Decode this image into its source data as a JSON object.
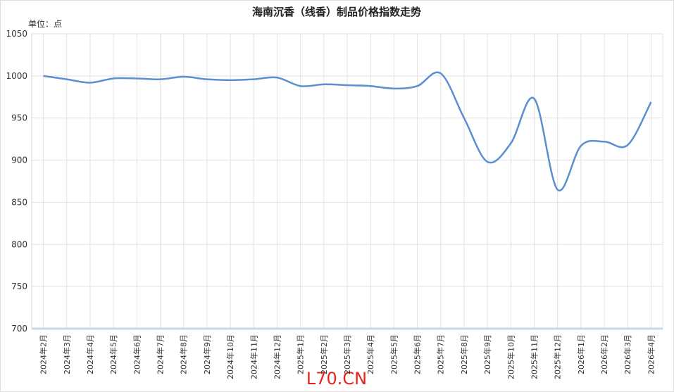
{
  "chart_data": {
    "type": "line",
    "title": "海南沉香（线香）制品价格指数走势",
    "y_unit": "单位：点",
    "watermark": "L70.CN",
    "categories": [
      "2024年2月",
      "2024年3月",
      "2024年4月",
      "2024年5月",
      "2024年6月",
      "2024年7月",
      "2024年8月",
      "2024年9月",
      "2024年10月",
      "2024年11月",
      "2024年12月",
      "2025年1月",
      "2025年2月",
      "2025年3月",
      "2025年4月",
      "2025年5月",
      "2025年6月",
      "2025年7月",
      "2025年8月",
      "2025年9月",
      "2025年10月",
      "2025年11月",
      "2025年12月",
      "2026年1月",
      "2026年2月",
      "2026年3月",
      "2026年4月"
    ],
    "values": [
      1000,
      996,
      992,
      997,
      997,
      996,
      999,
      996,
      995,
      996,
      998,
      988,
      990,
      989,
      988,
      985,
      988,
      1003,
      950,
      898,
      920,
      973,
      865,
      917,
      922,
      918,
      969
    ],
    "color": "#5b8fd0",
    "ylim": [
      700,
      1050
    ],
    "yticks": [
      700,
      750,
      800,
      850,
      900,
      950,
      1000,
      1050
    ],
    "grid": true,
    "smooth": true
  }
}
